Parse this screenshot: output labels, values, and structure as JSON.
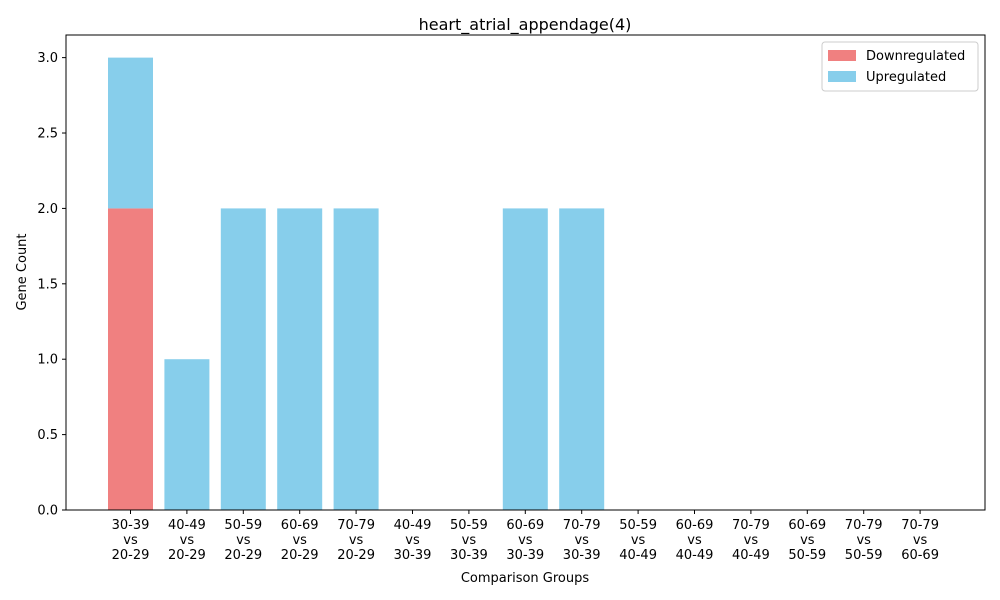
{
  "chart_data": {
    "type": "bar",
    "stacked": true,
    "title": "heart_atrial_appendage(4)",
    "xlabel": "Comparison Groups",
    "ylabel": "Gene Count",
    "ylim": [
      0,
      3.15
    ],
    "yticks": [
      "0.0",
      "0.5",
      "1.0",
      "1.5",
      "2.0",
      "2.5",
      "3.0"
    ],
    "grid": false,
    "legend_position": "top-right",
    "categories": [
      [
        "30-39",
        "vs",
        "20-29"
      ],
      [
        "40-49",
        "vs",
        "20-29"
      ],
      [
        "50-59",
        "vs",
        "20-29"
      ],
      [
        "60-69",
        "vs",
        "20-29"
      ],
      [
        "70-79",
        "vs",
        "20-29"
      ],
      [
        "40-49",
        "vs",
        "30-39"
      ],
      [
        "50-59",
        "vs",
        "30-39"
      ],
      [
        "60-69",
        "vs",
        "30-39"
      ],
      [
        "70-79",
        "vs",
        "30-39"
      ],
      [
        "50-59",
        "vs",
        "40-49"
      ],
      [
        "60-69",
        "vs",
        "40-49"
      ],
      [
        "70-79",
        "vs",
        "40-49"
      ],
      [
        "60-69",
        "vs",
        "50-59"
      ],
      [
        "70-79",
        "vs",
        "50-59"
      ],
      [
        "70-79",
        "vs",
        "60-69"
      ]
    ],
    "series": [
      {
        "name": "Downregulated",
        "color": "#f08080",
        "values": [
          2,
          0,
          0,
          0,
          0,
          0,
          0,
          0,
          0,
          0,
          0,
          0,
          0,
          0,
          0
        ]
      },
      {
        "name": "Upregulated",
        "color": "#87ceeb",
        "values": [
          1,
          1,
          2,
          2,
          2,
          0,
          0,
          2,
          2,
          0,
          0,
          0,
          0,
          0,
          0
        ]
      }
    ]
  }
}
